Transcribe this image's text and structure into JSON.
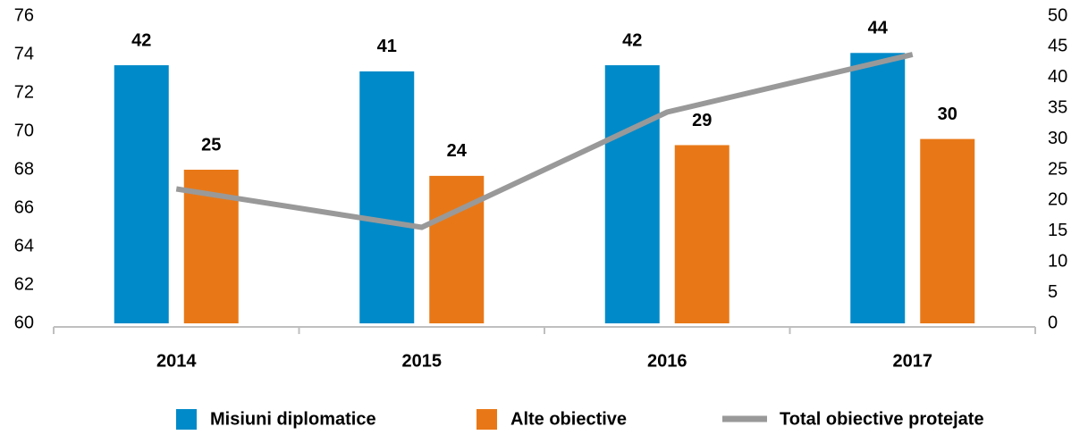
{
  "chart_data": {
    "type": "bar",
    "categories": [
      "2014",
      "2015",
      "2016",
      "2017"
    ],
    "series": [
      {
        "name": "Misiuni diplomatice",
        "type": "bar",
        "axis": "y2",
        "color": "#008ac9",
        "values": [
          42,
          41,
          42,
          44
        ]
      },
      {
        "name": "Alte obiective",
        "type": "bar",
        "axis": "y2",
        "color": "#e87817",
        "values": [
          25,
          24,
          29,
          30
        ]
      },
      {
        "name": "Total obiective protejate",
        "type": "line",
        "color": "#999999",
        "values": [
          67,
          65,
          71,
          74
        ]
      }
    ],
    "ylim": [
      60,
      76
    ],
    "yticks": [
      60,
      62,
      64,
      66,
      68,
      70,
      72,
      74,
      76
    ],
    "y2lim": [
      0,
      50
    ],
    "y2ticks": [
      0,
      5,
      10,
      15,
      20,
      25,
      30,
      35,
      40,
      45,
      50
    ],
    "legend": "bottom"
  }
}
